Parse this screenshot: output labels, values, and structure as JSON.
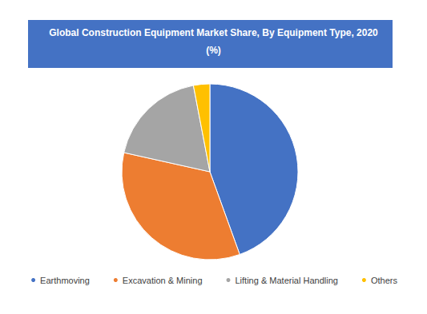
{
  "chart_data": {
    "type": "pie",
    "title": "Global Construction Equipment Market Share, By Equipment Type, 2020",
    "subtitle": "(%)",
    "categories": [
      "Earthmoving",
      "Excavation & Mining",
      "Lifting & Material Handling",
      "Others"
    ],
    "values": [
      44.5,
      34,
      18.5,
      3
    ],
    "colors": [
      "#4472c4",
      "#ed7d31",
      "#a5a5a5",
      "#ffc000"
    ],
    "legend": "bottom",
    "data_labels": false
  }
}
